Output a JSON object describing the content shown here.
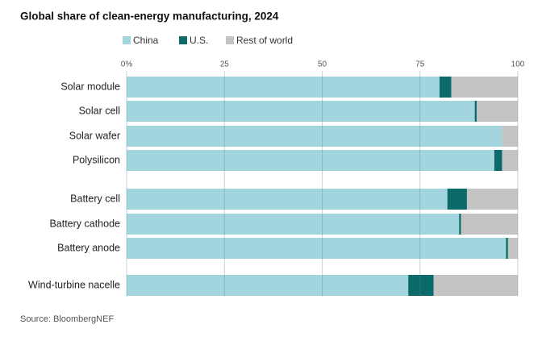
{
  "chart_data": {
    "type": "stacked-bar-horizontal",
    "title": "Global share of clean-energy manufacturing, 2024",
    "source": "Source: BloombergNEF",
    "categories": [
      "Solar module",
      "Solar cell",
      "Solar wafer",
      "Polysilicon",
      "Battery cell",
      "Battery cathode",
      "Battery anode",
      "Wind-turbine nacelle"
    ],
    "series": [
      {
        "name": "China",
        "color": "#a3d5df",
        "values": [
          80,
          89,
          96,
          94,
          82,
          85,
          97,
          72
        ]
      },
      {
        "name": "U.S.",
        "color": "#0b6a6a",
        "values": [
          3,
          0.5,
          0,
          2,
          5,
          0.5,
          0.5,
          6.5
        ]
      },
      {
        "name": "Rest of world",
        "color": "#c4c4c4",
        "values": [
          17,
          10.5,
          4,
          4,
          13,
          14.5,
          2.5,
          21.5
        ]
      }
    ],
    "xlim": [
      0,
      100
    ],
    "xticks": [
      {
        "value": 0,
        "label": "0%"
      },
      25,
      50,
      75,
      100
    ],
    "grid": true
  }
}
